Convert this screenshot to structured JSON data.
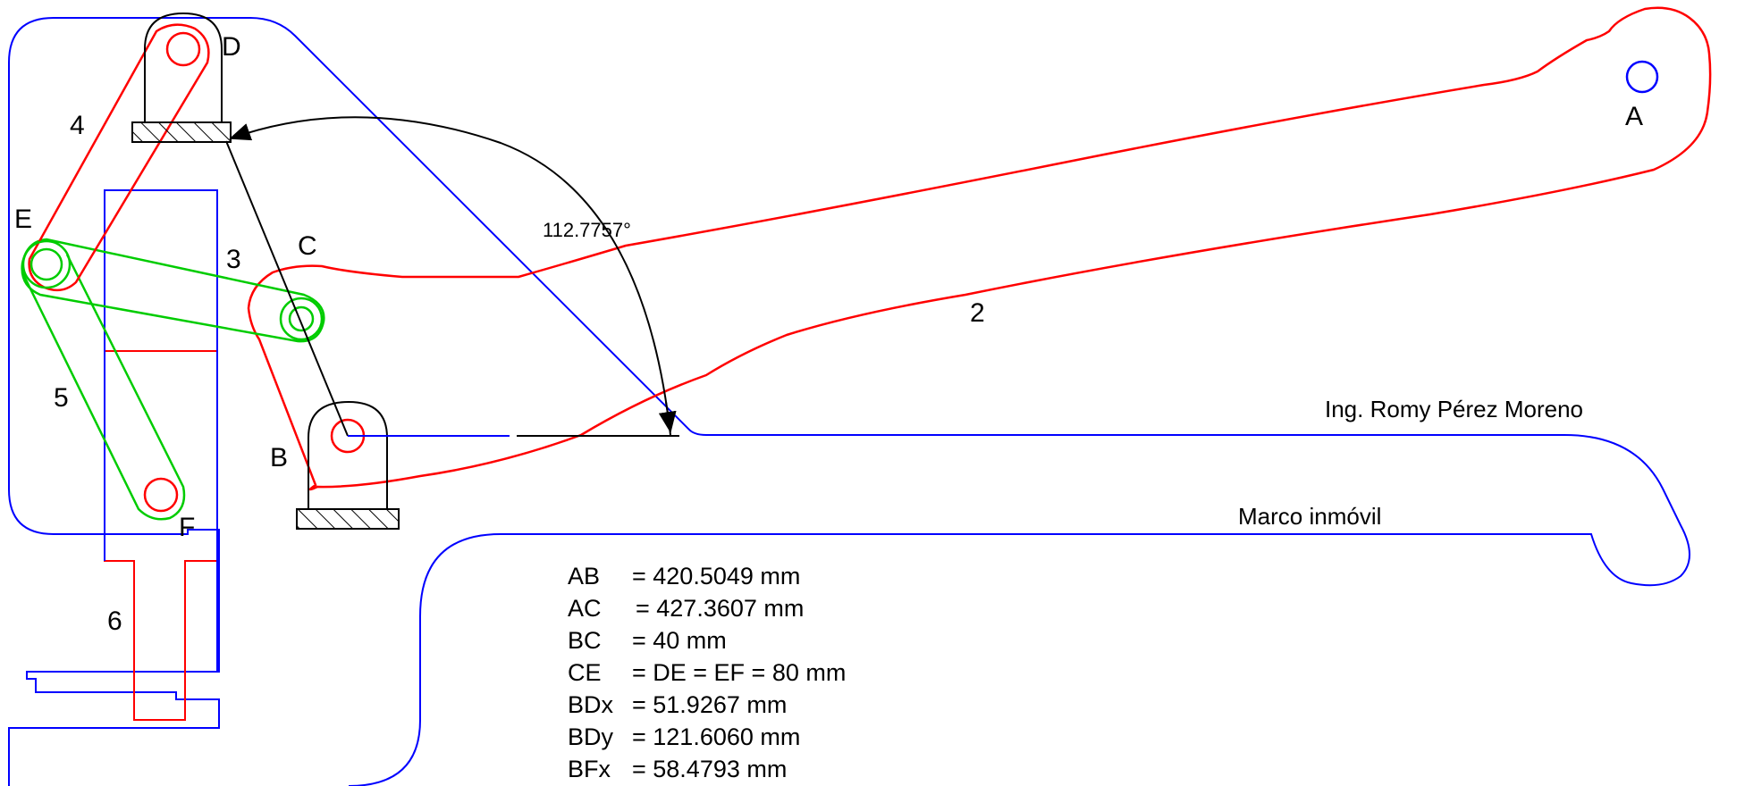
{
  "points": {
    "a": "A",
    "b": "B",
    "c": "C",
    "d": "D",
    "e": "E",
    "f": "F"
  },
  "links": {
    "l2": "2",
    "l3": "3",
    "l4": "4",
    "l5": "5",
    "l6": "6"
  },
  "angle": "112.7757°",
  "author": "Ing. Romy Pérez Moreno",
  "frame_label": "Marco inmóvil",
  "dimensions": [
    {
      "name": "AB",
      "value": "= 420.5049 mm"
    },
    {
      "name": "AC",
      "value": "= 427.3607 mm"
    },
    {
      "name": "BC",
      "value": "= 40 mm"
    },
    {
      "name": "CE",
      "value": "= DE = EF = 80 mm"
    },
    {
      "name": "BDx",
      "value": "= 51.9267 mm"
    },
    {
      "name": "BDy",
      "value": "= 121.6060 mm"
    },
    {
      "name": "BFx",
      "value": "= 58.4793 mm"
    }
  ],
  "colors": {
    "frame": "#0000ff",
    "red": "#ff0000",
    "green": "#00cc00",
    "black": "#000000"
  }
}
